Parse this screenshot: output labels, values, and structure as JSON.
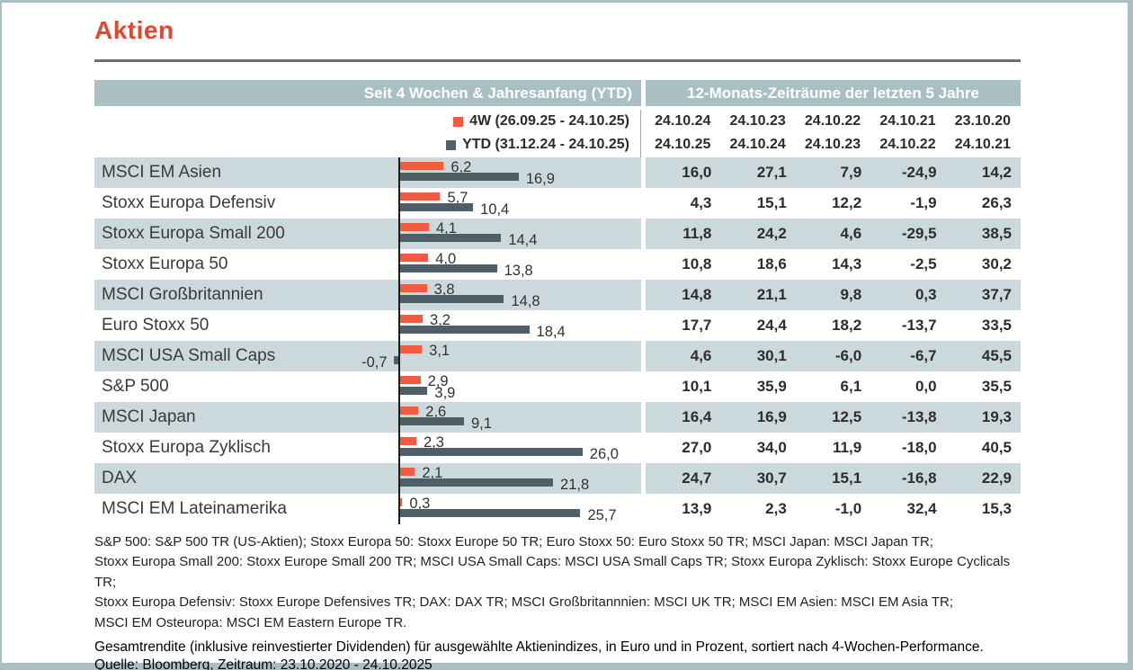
{
  "page": {
    "title": "Aktien"
  },
  "table": {
    "left_header": "Seit 4 Wochen & Jahresanfang (YTD)",
    "right_header": "12-Monats-Zeiträume der letzten 5 Jahre",
    "legend": [
      {
        "name": "4W",
        "label": "4W (26.09.25 - 24.10.25)",
        "color": "#f25b40"
      },
      {
        "name": "YTD",
        "label": "YTD (31.12.24 - 24.10.25)",
        "color": "#4e5f68"
      }
    ],
    "period_columns": [
      {
        "from": "24.10.24",
        "to": "24.10.25"
      },
      {
        "from": "24.10.23",
        "to": "24.10.24"
      },
      {
        "from": "24.10.22",
        "to": "24.10.23"
      },
      {
        "from": "24.10.21",
        "to": "24.10.22"
      },
      {
        "from": "23.10.20",
        "to": "24.10.21"
      }
    ]
  },
  "chart_data": {
    "type": "bar",
    "orientation": "horizontal",
    "unit": "percent",
    "series_names": [
      "4W",
      "YTD"
    ],
    "sorted_by": "4-Wochen-Performance",
    "rows": [
      {
        "label": "MSCI EM Asien",
        "w4": 6.2,
        "ytd": 16.9,
        "w4_label": "6,2",
        "ytd_label": "16,9",
        "periods": [
          "16,0",
          "27,1",
          "7,9",
          "-24,9",
          "14,2"
        ]
      },
      {
        "label": "Stoxx Europa Defensiv",
        "w4": 5.7,
        "ytd": 10.4,
        "w4_label": "5,7",
        "ytd_label": "10,4",
        "periods": [
          "4,3",
          "15,1",
          "12,2",
          "-1,9",
          "26,3"
        ]
      },
      {
        "label": "Stoxx Europa Small 200",
        "w4": 4.1,
        "ytd": 14.4,
        "w4_label": "4,1",
        "ytd_label": "14,4",
        "periods": [
          "11,8",
          "24,2",
          "4,6",
          "-29,5",
          "38,5"
        ]
      },
      {
        "label": "Stoxx Europa 50",
        "w4": 4.0,
        "ytd": 13.8,
        "w4_label": "4,0",
        "ytd_label": "13,8",
        "periods": [
          "10,8",
          "18,6",
          "14,3",
          "-2,5",
          "30,2"
        ]
      },
      {
        "label": "MSCI Großbritannien",
        "w4": 3.8,
        "ytd": 14.8,
        "w4_label": "3,8",
        "ytd_label": "14,8",
        "periods": [
          "14,8",
          "21,1",
          "9,8",
          "0,3",
          "37,7"
        ]
      },
      {
        "label": "Euro Stoxx 50",
        "w4": 3.2,
        "ytd": 18.4,
        "w4_label": "3,2",
        "ytd_label": "18,4",
        "periods": [
          "17,7",
          "24,4",
          "18,2",
          "-13,7",
          "33,5"
        ]
      },
      {
        "label": "MSCI USA Small Caps",
        "w4": 3.1,
        "ytd": -0.7,
        "w4_label": "3,1",
        "ytd_label": "-0,7",
        "periods": [
          "4,6",
          "30,1",
          "-6,0",
          "-6,7",
          "45,5"
        ]
      },
      {
        "label": "S&P 500",
        "w4": 2.9,
        "ytd": 3.9,
        "w4_label": "2,9",
        "ytd_label": "3,9",
        "periods": [
          "10,1",
          "35,9",
          "6,1",
          "0,0",
          "35,5"
        ]
      },
      {
        "label": "MSCI Japan",
        "w4": 2.6,
        "ytd": 9.1,
        "w4_label": "2,6",
        "ytd_label": "9,1",
        "periods": [
          "16,4",
          "16,9",
          "12,5",
          "-13,8",
          "19,3"
        ]
      },
      {
        "label": "Stoxx Europa Zyklisch",
        "w4": 2.3,
        "ytd": 26.0,
        "w4_label": "2,3",
        "ytd_label": "26,0",
        "periods": [
          "27,0",
          "34,0",
          "11,9",
          "-18,0",
          "40,5"
        ]
      },
      {
        "label": "DAX",
        "w4": 2.1,
        "ytd": 21.8,
        "w4_label": "2,1",
        "ytd_label": "21,8",
        "periods": [
          "24,7",
          "30,7",
          "15,1",
          "-16,8",
          "22,9"
        ]
      },
      {
        "label": "MSCI EM Lateinamerika",
        "w4": 0.3,
        "ytd": 25.7,
        "w4_label": "0,3",
        "ytd_label": "25,7",
        "periods": [
          "13,9",
          "2,3",
          "-1,0",
          "32,4",
          "15,3"
        ]
      }
    ]
  },
  "footnotes": [
    "S&P 500: S&P 500 TR (US-Aktien); Stoxx Europa 50: Stoxx Europe 50 TR; Euro Stoxx 50: Euro Stoxx 50 TR; MSCI Japan: MSCI Japan TR;",
    "Stoxx Europa Small 200: Stoxx Europe Small 200 TR; MSCI USA Small Caps: MSCI USA Small Caps TR; Stoxx Europa Zyklisch: Stoxx Europe Cyclicals TR;",
    "Stoxx Europa Defensiv: Stoxx Europe Defensives TR; DAX: DAX TR; MSCI Großbritannnien: MSCI UK TR; MSCI EM Asien: MSCI EM Asia TR;",
    "MSCI EM Osteuropa: MSCI EM Eastern Europe TR."
  ],
  "caption": {
    "line1": "Gesamtrendite (inklusive reinvestierter Dividenden) für ausgewählte Aktienindizes, in Euro und in Prozent, sortiert nach 4-Wochen-Performance.",
    "line2": "Quelle: Bloomberg, Zeitraum: 23.10.2020 - 24.10.2025"
  },
  "colors": {
    "accent_title": "#e8452e",
    "band": "#a9bfc4",
    "row_stripe": "#ccd9dc",
    "bar_4w": "#f25b40",
    "bar_ytd": "#4e5f68",
    "axis": "#1c1c1a",
    "rule": "#6e6f72"
  }
}
